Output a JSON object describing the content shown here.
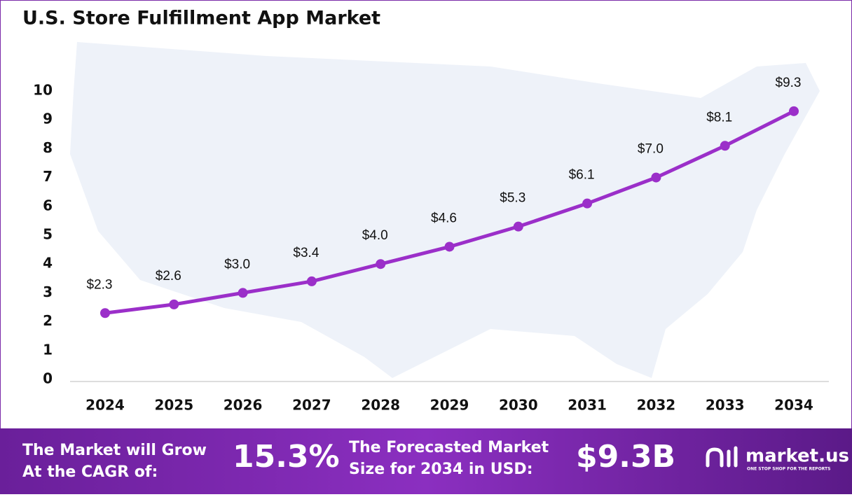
{
  "chart_data": {
    "type": "line",
    "title": "U.S. Store Fulfillment App Market",
    "categories": [
      "2024",
      "2025",
      "2026",
      "2027",
      "2028",
      "2029",
      "2030",
      "2031",
      "2032",
      "2033",
      "2034"
    ],
    "values": [
      2.3,
      2.6,
      3.0,
      3.4,
      4.0,
      4.6,
      5.3,
      6.1,
      7.0,
      8.1,
      9.3
    ],
    "value_labels": [
      "$2.3",
      "$2.6",
      "$3.0",
      "$3.4",
      "$4.0",
      "$4.6",
      "$5.3",
      "$6.1",
      "$7.0",
      "$8.1",
      "$9.3"
    ],
    "color": "#9b2fc9",
    "ylim": [
      0,
      10
    ],
    "yticks": [
      0,
      1,
      2,
      3,
      4,
      5,
      6,
      7,
      8,
      9,
      10
    ],
    "grid": false
  },
  "banner": {
    "cagr_text": [
      "The Market will Grow",
      "At the CAGR of:"
    ],
    "cagr": "15.3%",
    "forecast_text": [
      "The Forecasted Market",
      "Size for 2034 in USD:"
    ],
    "forecast": "$9.3B",
    "logo": "market.us",
    "tagline": "ONE STOP SHOP FOR THE REPORTS"
  }
}
